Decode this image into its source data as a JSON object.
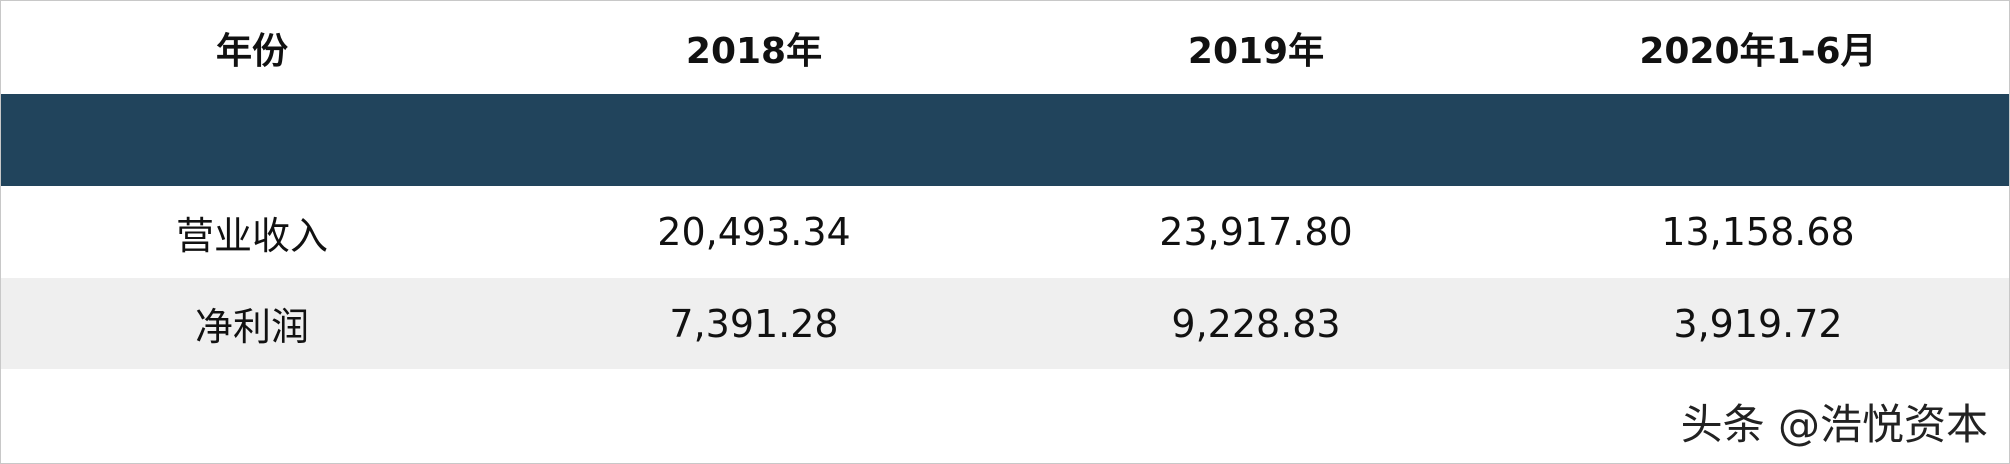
{
  "table": {
    "header": [
      "年份",
      "2018年",
      "2019年",
      "2020年1-6月"
    ],
    "rows": [
      [
        "营业收入",
        "20,493.34",
        "23,917.80",
        "13,158.68"
      ],
      [
        "净利润",
        "7,391.28",
        "9,228.83",
        "3,919.72"
      ]
    ]
  },
  "watermark": "头条 @浩悦资本"
}
